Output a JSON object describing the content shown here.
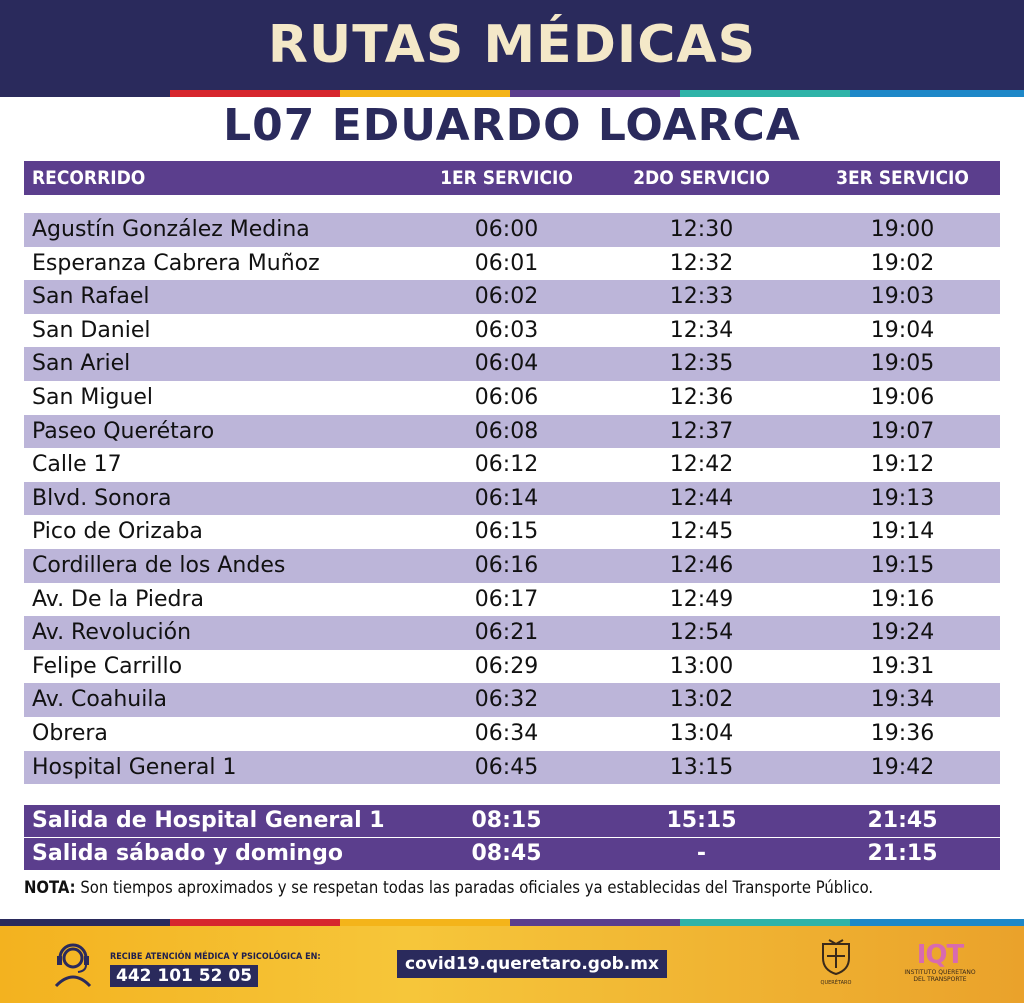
{
  "title": "RUTAS MÉDICAS",
  "subtitle": "L07 EDUARDO LOARCA",
  "table": {
    "headers": [
      "RECORRIDO",
      "1ER SERVICIO",
      "2DO SERVICIO",
      "3ER SERVICIO"
    ],
    "rows": [
      [
        "Agustín González Medina",
        "06:00",
        "12:30",
        "19:00"
      ],
      [
        "Esperanza Cabrera Muñoz",
        "06:01",
        "12:32",
        "19:02"
      ],
      [
        "San Rafael",
        "06:02",
        "12:33",
        "19:03"
      ],
      [
        "San Daniel",
        "06:03",
        "12:34",
        "19:04"
      ],
      [
        "San Ariel",
        "06:04",
        "12:35",
        "19:05"
      ],
      [
        "San Miguel",
        "06:06",
        "12:36",
        "19:06"
      ],
      [
        "Paseo Querétaro",
        "06:08",
        "12:37",
        "19:07"
      ],
      [
        "Calle 17",
        "06:12",
        "12:42",
        "19:12"
      ],
      [
        "Blvd. Sonora",
        "06:14",
        "12:44",
        "19:13"
      ],
      [
        "Pico de Orizaba",
        "06:15",
        "12:45",
        "19:14"
      ],
      [
        "Cordillera de los Andes",
        "06:16",
        "12:46",
        "19:15"
      ],
      [
        "Av. De la Piedra",
        "06:17",
        "12:49",
        "19:16"
      ],
      [
        "Av. Revolución",
        "06:21",
        "12:54",
        "19:24"
      ],
      [
        "Felipe Carrillo",
        "06:29",
        "13:00",
        "19:31"
      ],
      [
        "Av. Coahuila",
        "06:32",
        "13:02",
        "19:34"
      ],
      [
        "Obrera",
        "06:34",
        "13:04",
        "19:36"
      ],
      [
        "Hospital General 1",
        "06:45",
        "13:15",
        "19:42"
      ]
    ],
    "special_rows": [
      [
        "Salida de Hospital General 1",
        "08:15",
        "15:15",
        "21:45"
      ],
      [
        "Salida sábado y domingo",
        "08:45",
        "-",
        "21:15"
      ]
    ]
  },
  "note": {
    "label": "NOTA:",
    "text": " Son tiempos aproximados y se respetan todas las paradas oficiales ya establecidas del Transporte Público."
  },
  "footer": {
    "phone_caption": "RECIBE ATENCIÓN MÉDICA Y PSICOLÓGICA EN:",
    "phone": "442 101 52 05",
    "url": "covid19.queretaro.gob.mx",
    "seal_caption": "QUERÉTARO",
    "iqt_logo": "IQT",
    "iqt_caption_1": "INSTITUTO QUERETANO",
    "iqt_caption_2": "DEL TRANSPORTE"
  },
  "colors": {
    "banner": "#2a2a5c",
    "accent_purple": "#5b3e8d",
    "row_lavender": "#bcb5d9",
    "footer_yellow": "#f3b21f",
    "stripe": [
      "#d6262e",
      "#f4b41a",
      "#5b3e8d",
      "#2fb3a8",
      "#1e88c8"
    ]
  }
}
